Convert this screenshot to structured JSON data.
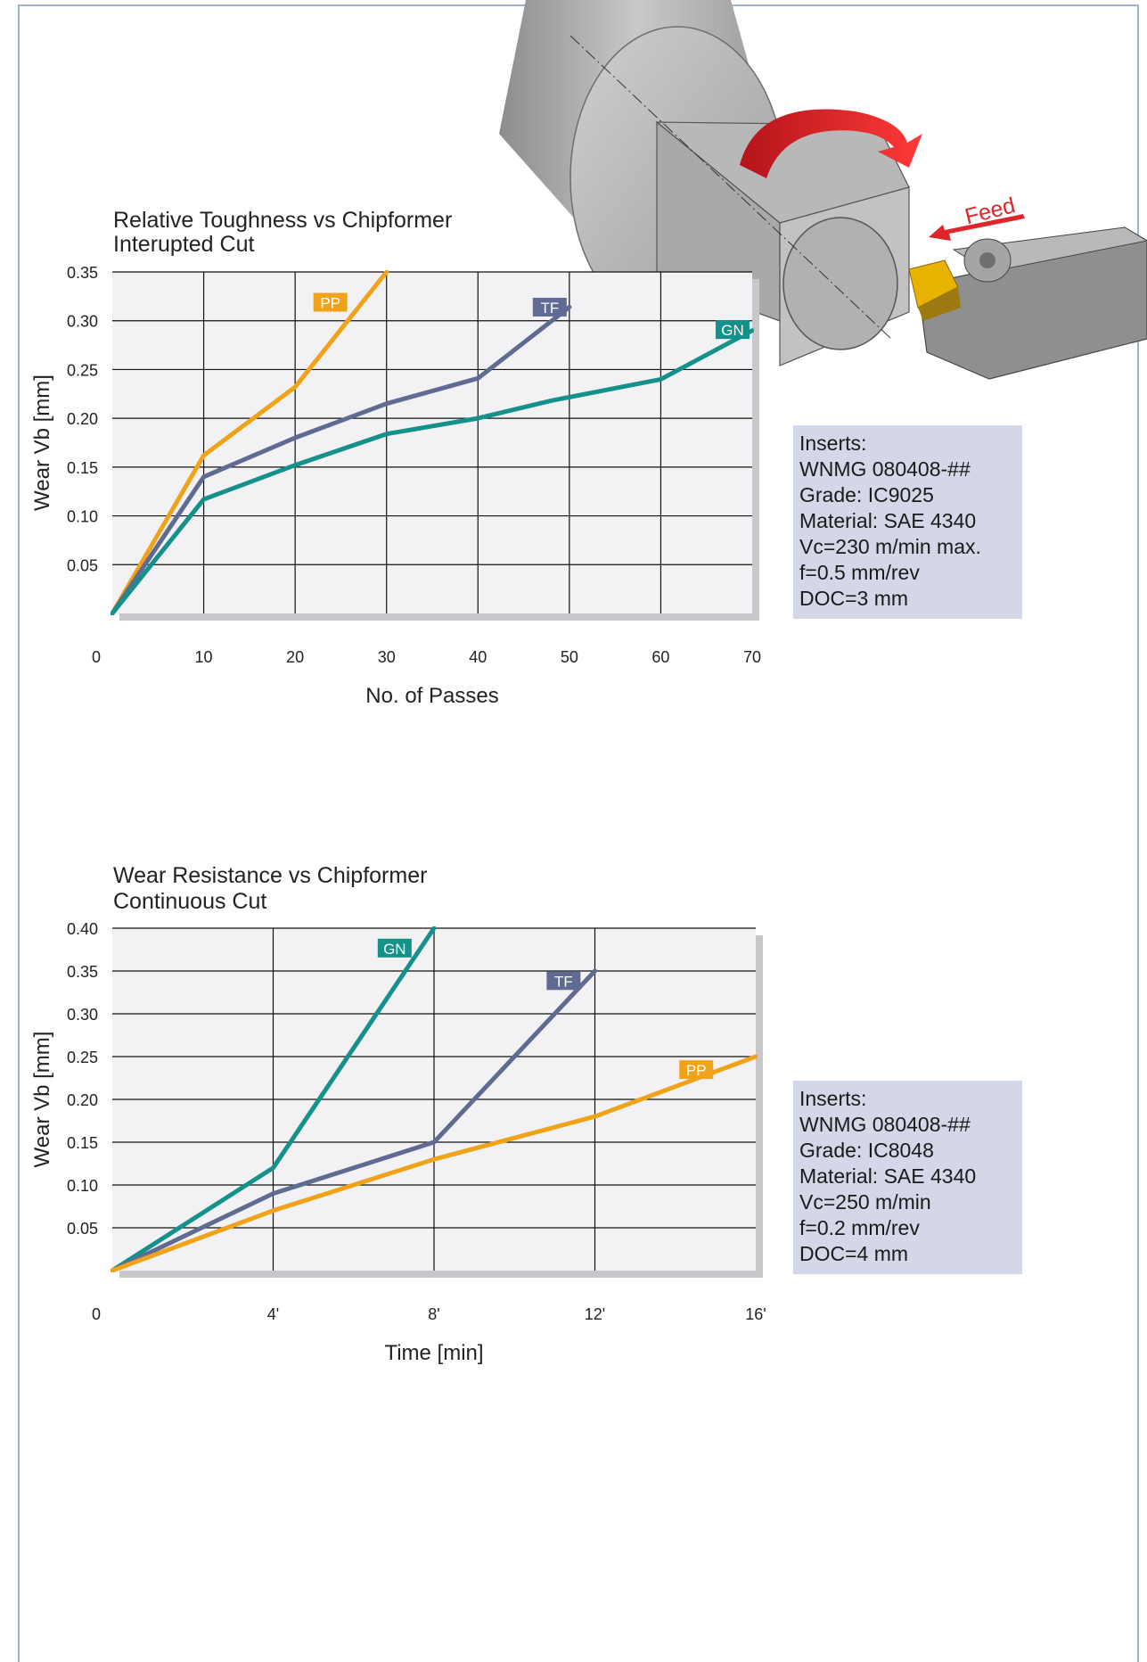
{
  "colors": {
    "PP": "#f0a318",
    "TF": "#5f6b92",
    "GN": "#14918a",
    "grid": "#111111",
    "plot_bg": "#f2f2f4",
    "shadow": "#c8c8cc",
    "arrow_red": "#d9262b"
  },
  "illustration": {
    "feed_label": "Feed",
    "icons": [
      "workpiece-icon",
      "rotation-arrow-icon",
      "feed-arrow-icon",
      "tool-holder-icon",
      "insert-icon"
    ]
  },
  "chart_data": [
    {
      "type": "line",
      "title": "Relative Toughness vs Chipformer",
      "subtitle": "Interupted Cut",
      "xlabel": "No. of Passes",
      "ylabel": "Wear Vb [mm]",
      "x_origin_label": "0",
      "xlim": [
        0,
        70
      ],
      "ylim": [
        0,
        0.35
      ],
      "x_ticks": [
        10,
        20,
        30,
        40,
        50,
        60,
        70
      ],
      "x_tick_labels": [
        "10",
        "20",
        "30",
        "40",
        "50",
        "60",
        "70"
      ],
      "y_ticks": [
        0.05,
        0.1,
        0.15,
        0.2,
        0.25,
        0.3,
        0.35
      ],
      "y_tick_labels": [
        "0.05",
        "0.10",
        "0.15",
        "0.20",
        "0.25",
        "0.30",
        "0.35"
      ],
      "grid": true,
      "series": [
        {
          "name": "PP",
          "color": "#f0a318",
          "label_at": [
            22,
            0.313
          ],
          "points": [
            [
              0,
              0
            ],
            [
              10,
              0.162
            ],
            [
              20,
              0.232
            ],
            [
              30,
              0.35
            ]
          ]
        },
        {
          "name": "TF",
          "color": "#5f6b92",
          "label_at": [
            46,
            0.308
          ],
          "points": [
            [
              0,
              0
            ],
            [
              10,
              0.14
            ],
            [
              20,
              0.18
            ],
            [
              30,
              0.215
            ],
            [
              40,
              0.241
            ],
            [
              50,
              0.314
            ]
          ]
        },
        {
          "name": "GN",
          "color": "#14918a",
          "label_at": [
            66,
            0.285
          ],
          "points": [
            [
              0,
              0
            ],
            [
              10,
              0.117
            ],
            [
              20,
              0.152
            ],
            [
              30,
              0.184
            ],
            [
              40,
              0.2
            ],
            [
              48,
              0.218
            ],
            [
              60,
              0.24
            ],
            [
              70,
              0.29
            ]
          ]
        }
      ],
      "info": {
        "lines": [
          "Inserts:",
          "WNMG 080408-##",
          "Grade: IC9025",
          "Material: SAE 4340",
          "Vc=230 m/min max.",
          "f=0.5 mm/rev",
          "DOC=3 mm"
        ]
      }
    },
    {
      "type": "line",
      "title": "Wear Resistance vs Chipformer",
      "subtitle": "Continuous Cut",
      "xlabel": "Time [min]",
      "ylabel": "Wear Vb [mm]",
      "x_origin_label": "0",
      "xlim": [
        0,
        16
      ],
      "ylim": [
        0,
        0.4
      ],
      "x_ticks": [
        4,
        8,
        12,
        16
      ],
      "x_tick_labels": [
        "4'",
        "8'",
        "12'",
        "16'"
      ],
      "y_ticks": [
        0.05,
        0.1,
        0.15,
        0.2,
        0.25,
        0.3,
        0.35,
        0.4
      ],
      "y_tick_labels": [
        "0.05",
        "0.10",
        "0.15",
        "0.20",
        "0.25",
        "0.30",
        "0.35",
        "0.40"
      ],
      "grid": true,
      "series": [
        {
          "name": "GN",
          "color": "#14918a",
          "label_at": [
            6.6,
            0.37
          ],
          "points": [
            [
              0,
              0
            ],
            [
              4,
              0.12
            ],
            [
              8,
              0.4
            ]
          ]
        },
        {
          "name": "TF",
          "color": "#5f6b92",
          "label_at": [
            10.8,
            0.332
          ],
          "points": [
            [
              0,
              0
            ],
            [
              4,
              0.09
            ],
            [
              8,
              0.15
            ],
            [
              12,
              0.35
            ]
          ]
        },
        {
          "name": "PP",
          "color": "#f0a318",
          "label_at": [
            14.1,
            0.228
          ],
          "points": [
            [
              0,
              0
            ],
            [
              4,
              0.07
            ],
            [
              8,
              0.13
            ],
            [
              12,
              0.18
            ],
            [
              16,
              0.25
            ]
          ]
        }
      ],
      "info": {
        "lines": [
          "Inserts:",
          "WNMG 080408-##",
          "Grade: IC8048",
          "Material: SAE 4340",
          "Vc=250 m/min",
          "f=0.2 mm/rev",
          "DOC=4 mm"
        ]
      }
    }
  ]
}
